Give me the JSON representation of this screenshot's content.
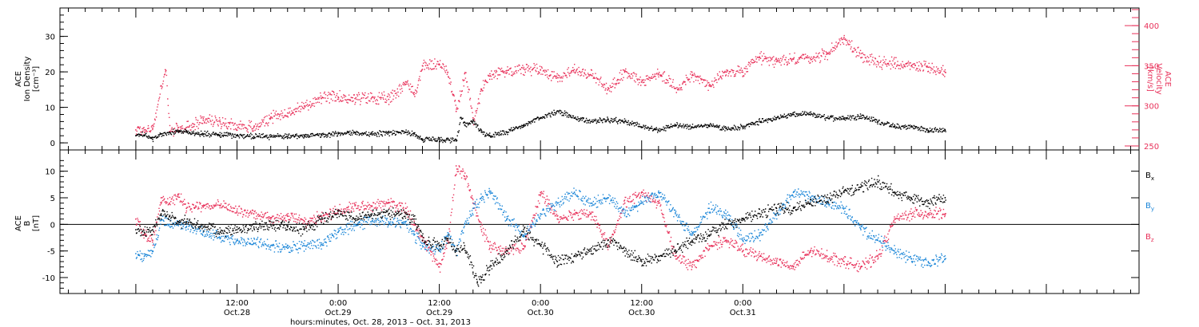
{
  "chart_data": [
    {
      "type": "scatter",
      "panel": "top",
      "y_left_label_lines": [
        "ACE",
        "Ion Density",
        "[cm⁻³]"
      ],
      "y_right_label_lines": [
        "ACE",
        "Velocity",
        "[km/s]"
      ],
      "y_left_ticks": [
        "0",
        "10",
        "20",
        "30"
      ],
      "y_right_ticks": [
        "250",
        "300",
        "350",
        "400"
      ],
      "ylim_left": [
        -2,
        38
      ],
      "ylim_right": [
        245,
        422
      ],
      "x_hours_range": [
        0,
        96
      ],
      "colors": {
        "density": "#000000",
        "velocity": "#e8315a"
      },
      "series": [
        {
          "key": "density",
          "x": [
            0,
            1,
            2,
            3,
            4,
            5,
            6,
            8,
            10,
            12,
            14,
            16,
            18,
            20,
            22,
            24,
            26,
            28,
            30,
            32,
            33,
            34,
            36,
            38,
            38.5,
            39,
            40,
            41,
            42,
            44,
            46,
            48,
            50,
            52,
            54,
            56,
            58,
            60,
            62,
            64,
            66,
            68,
            70,
            72,
            74,
            76,
            78,
            80,
            82,
            84,
            86,
            88,
            90,
            92,
            94,
            96
          ],
          "values": [
            2,
            2.2,
            1,
            2.5,
            3,
            3.2,
            3,
            2.5,
            2.2,
            2,
            1.8,
            1.7,
            1.8,
            2,
            2.2,
            2.5,
            2.8,
            2.5,
            2.8,
            3,
            2.5,
            0.8,
            1,
            0.5,
            7,
            5,
            6,
            3,
            2,
            3,
            5,
            7,
            9,
            7,
            6,
            6.5,
            6,
            4.5,
            3.5,
            5,
            4.5,
            5,
            4,
            4.5,
            6,
            7,
            8,
            8,
            7,
            7,
            7.5,
            6,
            4.5,
            4.5,
            3.5,
            3.5
          ]
        },
        {
          "key": "velocity",
          "x": [
            0,
            1,
            2,
            3,
            3.5,
            4,
            5,
            6,
            8,
            10,
            12,
            14,
            16,
            18,
            20,
            22,
            24,
            26,
            28,
            30,
            32,
            33,
            34,
            36,
            37,
            38,
            39,
            40,
            41,
            42,
            44,
            46,
            48,
            50,
            52,
            54,
            56,
            58,
            60,
            62,
            64,
            66,
            68,
            70,
            72,
            74,
            76,
            78,
            80,
            82,
            84,
            86,
            88,
            90,
            92,
            94,
            96
          ],
          "values": [
            270,
            270,
            272,
            325,
            345,
            268,
            270,
            273,
            282,
            280,
            276,
            273,
            286,
            291,
            300,
            309,
            311,
            309,
            310,
            308,
            330,
            314,
            350,
            351,
            342,
            293,
            340,
            285,
            320,
            340,
            344,
            346,
            345,
            335,
            345,
            338,
            320,
            343,
            330,
            340,
            322,
            338,
            325,
            342,
            342,
            360,
            355,
            358,
            359,
            365,
            385,
            360,
            355,
            352,
            350,
            348,
            342
          ]
        }
      ]
    },
    {
      "type": "scatter",
      "panel": "bottom",
      "y_label_lines": [
        "ACE",
        "B",
        "[nT]"
      ],
      "y_ticks": [
        "-10",
        "-5",
        "0",
        "5",
        "10"
      ],
      "ylim": [
        -13,
        14
      ],
      "x_hours_range": [
        0,
        96
      ],
      "legend_position": "right",
      "colors": {
        "bx": "#000000",
        "by": "#1b86d8",
        "bz": "#e8315a"
      },
      "series": [
        {
          "key": "bx",
          "name_main": "B",
          "name_sub": "x",
          "x": [
            0,
            1,
            2,
            3,
            4,
            5,
            6,
            8,
            10,
            12,
            14,
            16,
            18,
            20,
            22,
            24,
            26,
            28,
            30,
            32,
            33,
            34,
            36,
            37,
            38,
            39,
            40,
            40.5,
            41,
            42,
            44,
            46,
            48,
            50,
            52,
            54,
            56,
            58,
            60,
            62,
            64,
            66,
            68,
            70,
            72,
            74,
            76,
            78,
            80,
            82,
            84,
            86,
            88,
            90,
            92,
            94,
            96
          ],
          "values": [
            -1,
            -1.5,
            -1,
            2,
            1.5,
            0.5,
            0.5,
            -0.5,
            -1.5,
            -1,
            -0.5,
            0,
            -0.5,
            -1,
            1,
            2,
            1,
            2,
            2,
            2,
            1,
            -3,
            -4,
            -3,
            -5,
            -4,
            -9,
            -11,
            -10,
            -8,
            -5,
            -1,
            -4,
            -7,
            -6,
            -5,
            -3,
            -5,
            -7,
            -6,
            -5,
            -3,
            -2,
            0,
            1,
            2,
            3,
            3,
            4,
            5,
            6,
            7,
            8,
            6,
            5,
            4,
            5
          ]
        },
        {
          "key": "by",
          "name_main": "B",
          "name_sub": "y",
          "x": [
            0,
            1,
            2,
            3,
            4,
            5,
            6,
            8,
            10,
            12,
            14,
            16,
            18,
            20,
            22,
            24,
            26,
            28,
            30,
            32,
            33,
            34,
            36,
            37,
            38,
            39,
            40,
            41,
            42,
            44,
            46,
            48,
            50,
            52,
            54,
            56,
            58,
            60,
            62,
            64,
            66,
            68,
            70,
            72,
            74,
            76,
            78,
            80,
            82,
            84,
            86,
            88,
            90,
            92,
            94,
            96
          ],
          "values": [
            -5.5,
            -6,
            -5,
            1,
            0,
            0,
            -0.5,
            -1.5,
            -2.5,
            -3,
            -3.5,
            -4,
            -4.5,
            -4,
            -3.5,
            -1.5,
            0,
            0.5,
            0.5,
            0.5,
            -2,
            -4,
            -5,
            -2,
            -5,
            0,
            3,
            5,
            6,
            1,
            -2,
            2,
            4,
            6,
            4,
            5,
            2,
            4,
            6,
            2,
            -2,
            3,
            2,
            -3,
            -2,
            2,
            6,
            5,
            4,
            3,
            -1,
            -3,
            -5,
            -6.5,
            -7,
            -6.5
          ]
        },
        {
          "key": "bz",
          "name_main": "B",
          "name_sub": "z",
          "x": [
            0,
            1,
            2,
            3,
            4,
            5,
            6,
            8,
            10,
            12,
            14,
            16,
            18,
            20,
            22,
            24,
            26,
            28,
            30,
            32,
            33,
            34,
            36,
            37,
            38,
            39,
            40,
            41,
            42,
            44,
            46,
            48,
            50,
            52,
            54,
            56,
            58,
            60,
            62,
            64,
            66,
            68,
            70,
            72,
            74,
            76,
            78,
            80,
            82,
            84,
            86,
            88,
            90,
            92,
            94,
            96
          ],
          "values": [
            1,
            -2,
            -3,
            5,
            4,
            5.5,
            3,
            3.5,
            3.5,
            2.5,
            2,
            1,
            1.5,
            0.5,
            1.5,
            2.5,
            3.5,
            3.5,
            4,
            3,
            0,
            -3,
            -8,
            -3,
            11,
            9,
            4,
            -1,
            -4,
            -5,
            -4,
            6,
            1,
            2,
            2,
            -4,
            4,
            6,
            4,
            -6,
            -8,
            -4,
            -3,
            -5,
            -6,
            -7,
            -8,
            -5,
            -6,
            -7,
            -8,
            -6,
            1,
            2,
            2,
            2
          ]
        }
      ]
    }
  ],
  "x_axis": {
    "tick_labels": [
      {
        "time": "12:00",
        "date": "Oct.28",
        "hour": 12
      },
      {
        "time": "0:00",
        "date": "Oct.29",
        "hour": 24
      },
      {
        "time": "12:00",
        "date": "Oct.29",
        "hour": 36
      },
      {
        "time": "0:00",
        "date": "Oct.30",
        "hour": 48
      },
      {
        "time": "12:00",
        "date": "Oct.30",
        "hour": 60
      },
      {
        "time": "0:00",
        "date": "Oct.31",
        "hour": 72
      }
    ],
    "title": "hours:minutes, Oct. 28, 2013 – Oct. 31, 2013"
  }
}
